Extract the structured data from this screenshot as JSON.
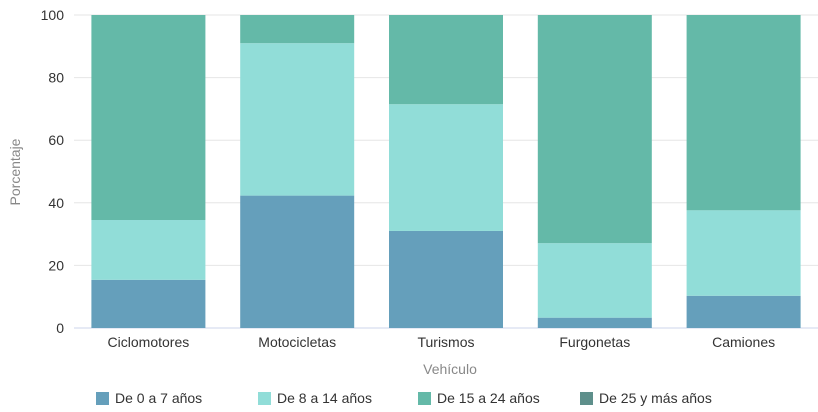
{
  "chart_data": {
    "type": "bar",
    "stacked": true,
    "title": "",
    "xlabel": "Vehículo",
    "ylabel": "Porcentaje",
    "ylim": [
      0,
      100
    ],
    "yticks": [
      "0",
      "20",
      "40",
      "60",
      "80",
      "100"
    ],
    "grid": true,
    "legend_position": "bottom",
    "categories": [
      "Ciclomotores",
      "Motocicletas",
      "Turismos",
      "Furgonetas",
      "Camiones"
    ],
    "series": [
      {
        "name": "De 0 a 7 años",
        "color": "#659fbb",
        "values": [
          15.4,
          42.3,
          31.0,
          3.3,
          10.3
        ]
      },
      {
        "name": "De 8 a 14 años",
        "color": "#91ddd8",
        "values": [
          19.1,
          48.7,
          40.5,
          23.8,
          27.3
        ]
      },
      {
        "name": "De 15 a 24 años",
        "color": "#64b9a8",
        "values": [
          65.5,
          9.0,
          28.5,
          72.9,
          62.4
        ]
      },
      {
        "name": "De 25 y más años",
        "color": "#5e8f8b",
        "values": [
          0,
          0,
          0,
          0,
          0
        ]
      }
    ]
  }
}
